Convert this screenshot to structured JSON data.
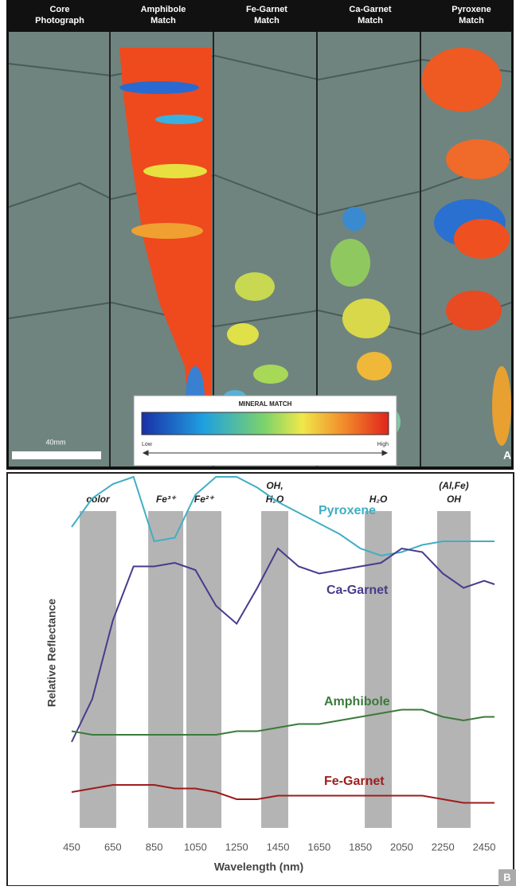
{
  "panel_a": {
    "columns": [
      [
        "Core",
        "Photograph"
      ],
      [
        "Amphibole",
        "Match"
      ],
      [
        "Fe-Garnet",
        "Match"
      ],
      [
        "Ca-Garnet",
        "Match"
      ],
      [
        "Pyroxene",
        "Match"
      ]
    ],
    "legend_title": "MINERAL MATCH",
    "legend_low": "Low",
    "legend_high": "High",
    "scale_bar": "40mm",
    "panel_label": "A"
  },
  "chart_data": {
    "type": "line",
    "panel_label": "B",
    "x_label": "Wavelength (nm)",
    "y_label": "Relative Reflectance",
    "x": [
      450,
      550,
      650,
      750,
      850,
      950,
      1050,
      1150,
      1250,
      1350,
      1450,
      1550,
      1650,
      1750,
      1850,
      1950,
      2050,
      2150,
      2250,
      2350,
      2450,
      2500
    ],
    "xlim": [
      450,
      2500
    ],
    "xticks": [
      450,
      650,
      850,
      1050,
      1250,
      1450,
      1650,
      1850,
      2050,
      2250,
      2450
    ],
    "ylim": [
      0,
      1
    ],
    "grid": false,
    "bands": [
      {
        "lines": [
          "color"
        ],
        "start": 489,
        "end": 666
      },
      {
        "lines": [
          "Fe³⁺"
        ],
        "start": 821,
        "end": 991
      },
      {
        "lines": [
          "Fe²⁺"
        ],
        "start": 1006,
        "end": 1176
      },
      {
        "lines": [
          "OH,",
          "H₂O"
        ],
        "start": 1369,
        "end": 1500
      },
      {
        "lines": [
          "H₂O"
        ],
        "start": 1871,
        "end": 2002
      },
      {
        "lines": [
          "(Al,Fe)",
          "OH"
        ],
        "start": 2222,
        "end": 2384
      }
    ],
    "series": [
      {
        "name": "Pyroxene",
        "color": "#41aec4",
        "values": [
          0.84,
          0.92,
          0.96,
          0.98,
          0.8,
          0.81,
          0.93,
          0.98,
          0.98,
          0.95,
          0.91,
          0.88,
          0.85,
          0.82,
          0.78,
          0.76,
          0.77,
          0.79,
          0.8,
          0.8,
          0.8,
          0.8
        ]
      },
      {
        "name": "Ca-Garnet",
        "color": "#4b3a8c",
        "values": [
          0.24,
          0.36,
          0.58,
          0.73,
          0.73,
          0.74,
          0.72,
          0.62,
          0.57,
          0.67,
          0.78,
          0.73,
          0.71,
          0.72,
          0.73,
          0.74,
          0.78,
          0.77,
          0.71,
          0.67,
          0.69,
          0.68
        ]
      },
      {
        "name": "Amphibole",
        "color": "#3b7a3b",
        "values": [
          0.27,
          0.26,
          0.26,
          0.26,
          0.26,
          0.26,
          0.26,
          0.26,
          0.27,
          0.27,
          0.28,
          0.29,
          0.29,
          0.3,
          0.31,
          0.32,
          0.33,
          0.33,
          0.31,
          0.3,
          0.31,
          0.31
        ]
      },
      {
        "name": "Fe-Garnet",
        "color": "#9e1c1c",
        "values": [
          0.1,
          0.11,
          0.12,
          0.12,
          0.12,
          0.11,
          0.11,
          0.1,
          0.08,
          0.08,
          0.09,
          0.09,
          0.09,
          0.09,
          0.09,
          0.09,
          0.09,
          0.09,
          0.08,
          0.07,
          0.07,
          0.07
        ]
      }
    ]
  }
}
